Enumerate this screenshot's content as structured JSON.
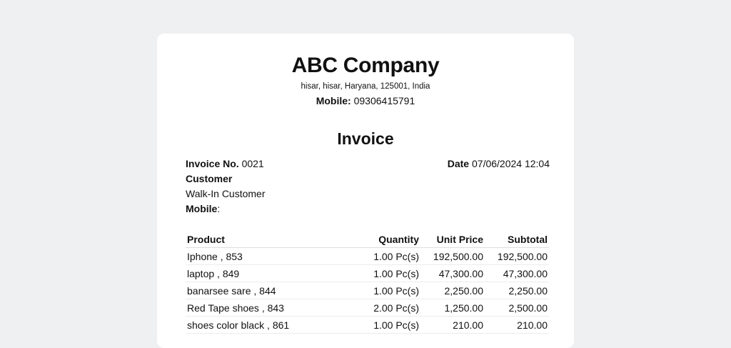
{
  "company": {
    "name": "ABC Company",
    "address": "hisar, hisar, Haryana, 125001, India",
    "mobile_label": "Mobile:",
    "mobile_value": "09306415791"
  },
  "document": {
    "title": "Invoice"
  },
  "meta": {
    "invoice_no_label": "Invoice No.",
    "invoice_no_value": "0021",
    "date_label": "Date",
    "date_value": "07/06/2024 12:04",
    "customer_label": "Customer",
    "customer_name": "Walk-In Customer",
    "customer_mobile_label": "Mobile",
    "customer_mobile_value": ":"
  },
  "table": {
    "headers": {
      "product": "Product",
      "quantity": "Quantity",
      "unit_price": "Unit Price",
      "subtotal": "Subtotal"
    },
    "rows": [
      {
        "product": "Iphone , 853",
        "quantity": "1.00 Pc(s)",
        "unit_price": "192,500.00",
        "subtotal": "192,500.00"
      },
      {
        "product": "laptop , 849",
        "quantity": "1.00 Pc(s)",
        "unit_price": "47,300.00",
        "subtotal": "47,300.00"
      },
      {
        "product": "banarsee sare , 844",
        "quantity": "1.00 Pc(s)",
        "unit_price": "2,250.00",
        "subtotal": "2,250.00"
      },
      {
        "product": "Red Tape shoes , 843",
        "quantity": "2.00 Pc(s)",
        "unit_price": "1,250.00",
        "subtotal": "2,500.00"
      },
      {
        "product": "shoes color black , 861",
        "quantity": "1.00 Pc(s)",
        "unit_price": "210.00",
        "subtotal": "210.00"
      }
    ]
  }
}
